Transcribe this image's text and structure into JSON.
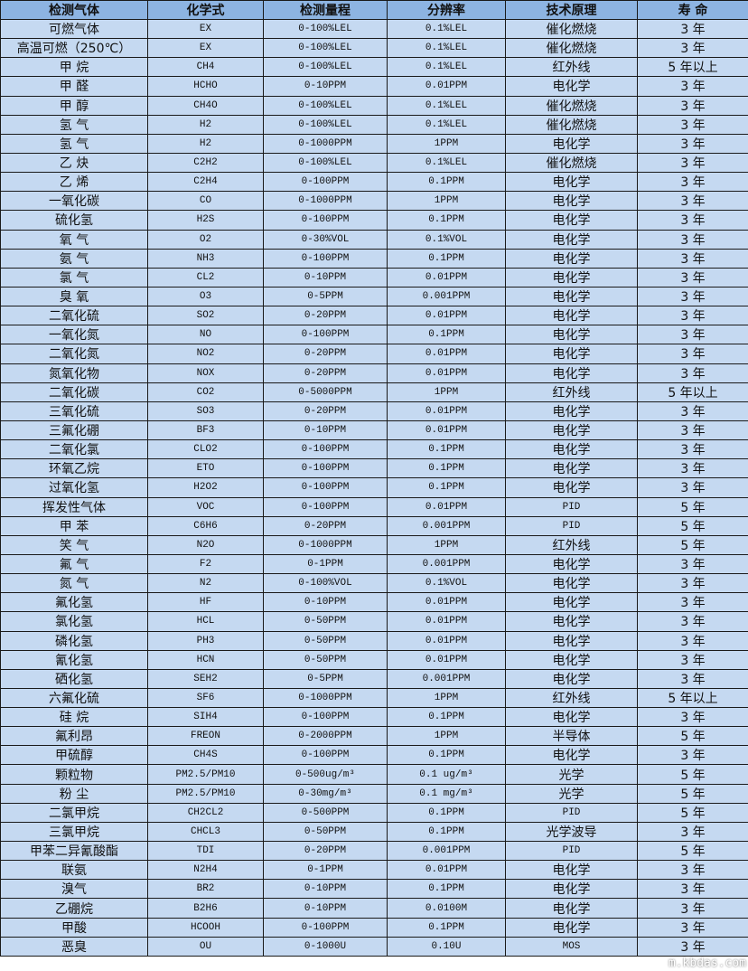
{
  "header": [
    "检测气体",
    "化学式",
    "检测量程",
    "分辨率",
    "技术原理",
    "寿 命"
  ],
  "rows": [
    [
      "可燃气体",
      "EX",
      "0-100%LEL",
      "0.1%LEL",
      "催化燃烧",
      "3 年"
    ],
    [
      "高温可燃（250℃）",
      "EX",
      "0-100%LEL",
      "0.1%LEL",
      "催化燃烧",
      "3 年"
    ],
    [
      "甲 烷",
      "CH4",
      "0-100%LEL",
      "0.1%LEL",
      "红外线",
      "5 年以上"
    ],
    [
      "甲 醛",
      "HCHO",
      "0-10PPM",
      "0.01PPM",
      "电化学",
      "3 年"
    ],
    [
      "甲 醇",
      "CH4O",
      "0-100%LEL",
      "0.1%LEL",
      "催化燃烧",
      "3 年"
    ],
    [
      "氢 气",
      "H2",
      "0-100%LEL",
      "0.1%LEL",
      "催化燃烧",
      "3 年"
    ],
    [
      "氢 气",
      "H2",
      "0-1000PPM",
      "1PPM",
      "电化学",
      "3 年"
    ],
    [
      "乙 炔",
      "C2H2",
      "0-100%LEL",
      "0.1%LEL",
      "催化燃烧",
      "3 年"
    ],
    [
      "乙 烯",
      "C2H4",
      "0-100PPM",
      "0.1PPM",
      "电化学",
      "3 年"
    ],
    [
      "一氧化碳",
      "CO",
      "0-1000PPM",
      "1PPM",
      "电化学",
      "3 年"
    ],
    [
      "硫化氢",
      "H2S",
      "0-100PPM",
      "0.1PPM",
      "电化学",
      "3 年"
    ],
    [
      "氧 气",
      "O2",
      "0-30%VOL",
      "0.1%VOL",
      "电化学",
      "3 年"
    ],
    [
      "氨 气",
      "NH3",
      "0-100PPM",
      "0.1PPM",
      "电化学",
      "3 年"
    ],
    [
      "氯 气",
      "CL2",
      "0-10PPM",
      "0.01PPM",
      "电化学",
      "3 年"
    ],
    [
      "臭 氧",
      "O3",
      "0-5PPM",
      "0.001PPM",
      "电化学",
      "3 年"
    ],
    [
      "二氧化硫",
      "SO2",
      "0-20PPM",
      "0.01PPM",
      "电化学",
      "3 年"
    ],
    [
      "一氧化氮",
      "NO",
      "0-100PPM",
      "0.1PPM",
      "电化学",
      "3 年"
    ],
    [
      "二氧化氮",
      "NO2",
      "0-20PPM",
      "0.01PPM",
      "电化学",
      "3 年"
    ],
    [
      "氮氧化物",
      "NOX",
      "0-20PPM",
      "0.01PPM",
      "电化学",
      "3 年"
    ],
    [
      "二氧化碳",
      "CO2",
      "0-5000PPM",
      "1PPM",
      "红外线",
      "5 年以上"
    ],
    [
      "三氧化硫",
      "SO3",
      "0-20PPM",
      "0.01PPM",
      "电化学",
      "3 年"
    ],
    [
      "三氟化硼",
      "BF3",
      "0-10PPM",
      "0.01PPM",
      "电化学",
      "3 年"
    ],
    [
      "二氧化氯",
      "CLO2",
      "0-100PPM",
      "0.1PPM",
      "电化学",
      "3 年"
    ],
    [
      "环氧乙烷",
      "ETO",
      "0-100PPM",
      "0.1PPM",
      "电化学",
      "3 年"
    ],
    [
      "过氧化氢",
      "H2O2",
      "0-100PPM",
      "0.1PPM",
      "电化学",
      "3 年"
    ],
    [
      "挥发性气体",
      "VOC",
      "0-100PPM",
      "0.01PPM",
      "PID",
      "5 年"
    ],
    [
      "甲 苯",
      "C6H6",
      "0-20PPM",
      "0.001PPM",
      "PID",
      "5 年"
    ],
    [
      "笑 气",
      "N2O",
      "0-1000PPM",
      "1PPM",
      "红外线",
      "5 年"
    ],
    [
      "氟 气",
      "F2",
      "0-1PPM",
      "0.001PPM",
      "电化学",
      "3 年"
    ],
    [
      "氮 气",
      "N2",
      "0-100%VOL",
      "0.1%VOL",
      "电化学",
      "3 年"
    ],
    [
      "氟化氢",
      "HF",
      "0-10PPM",
      "0.01PPM",
      "电化学",
      "3 年"
    ],
    [
      "氯化氢",
      "HCL",
      "0-50PPM",
      "0.01PPM",
      "电化学",
      "3 年"
    ],
    [
      "磷化氢",
      "PH3",
      "0-50PPM",
      "0.01PPM",
      "电化学",
      "3 年"
    ],
    [
      "氰化氢",
      "HCN",
      "0-50PPM",
      "0.01PPM",
      "电化学",
      "3 年"
    ],
    [
      "硒化氢",
      "SEH2",
      "0-5PPM",
      "0.001PPM",
      "电化学",
      "3 年"
    ],
    [
      "六氟化硫",
      "SF6",
      "0-1000PPM",
      "1PPM",
      "红外线",
      "5 年以上"
    ],
    [
      "硅 烷",
      "SIH4",
      "0-100PPM",
      "0.1PPM",
      "电化学",
      "3 年"
    ],
    [
      "氟利昂",
      "FREON",
      "0-2000PPM",
      "1PPM",
      "半导体",
      "5 年"
    ],
    [
      "甲硫醇",
      "CH4S",
      "0-100PPM",
      "0.1PPM",
      "电化学",
      "3 年"
    ],
    [
      "颗粒物",
      "PM2.5/PM10",
      "0-500ug/m³",
      "0.1 ug/m³",
      "光学",
      "5 年"
    ],
    [
      "粉 尘",
      "PM2.5/PM10",
      "0-30mg/m³",
      "0.1 mg/m³",
      "光学",
      "5 年"
    ],
    [
      "二氯甲烷",
      "CH2CL2",
      "0-500PPM",
      "0.1PPM",
      "PID",
      "5 年"
    ],
    [
      "三氯甲烷",
      "CHCL3",
      "0-50PPM",
      "0.1PPM",
      "光学波导",
      "3 年"
    ],
    [
      "甲苯二异氰酸酯",
      "TDI",
      "0-20PPM",
      "0.001PPM",
      "PID",
      "5 年"
    ],
    [
      "联氨",
      "N2H4",
      "0-1PPM",
      "0.01PPM",
      "电化学",
      "3 年"
    ],
    [
      "溴气",
      "BR2",
      "0-10PPM",
      "0.1PPM",
      "电化学",
      "3 年"
    ],
    [
      "乙硼烷",
      "B2H6",
      "0-10PPM",
      "0.0100M",
      "电化学",
      "3 年"
    ],
    [
      "甲酸",
      "HCOOH",
      "0-100PPM",
      "0.1PPM",
      "电化学",
      "3 年"
    ],
    [
      "恶臭",
      "OU",
      "0-1000U",
      "0.10U",
      "MOS",
      "3 年"
    ]
  ],
  "watermark": "m.kbdas.com",
  "colors": {
    "header_bg": "#8DB4E2",
    "row_bg": "#C5D9F1",
    "border": "#1A1A1A"
  }
}
